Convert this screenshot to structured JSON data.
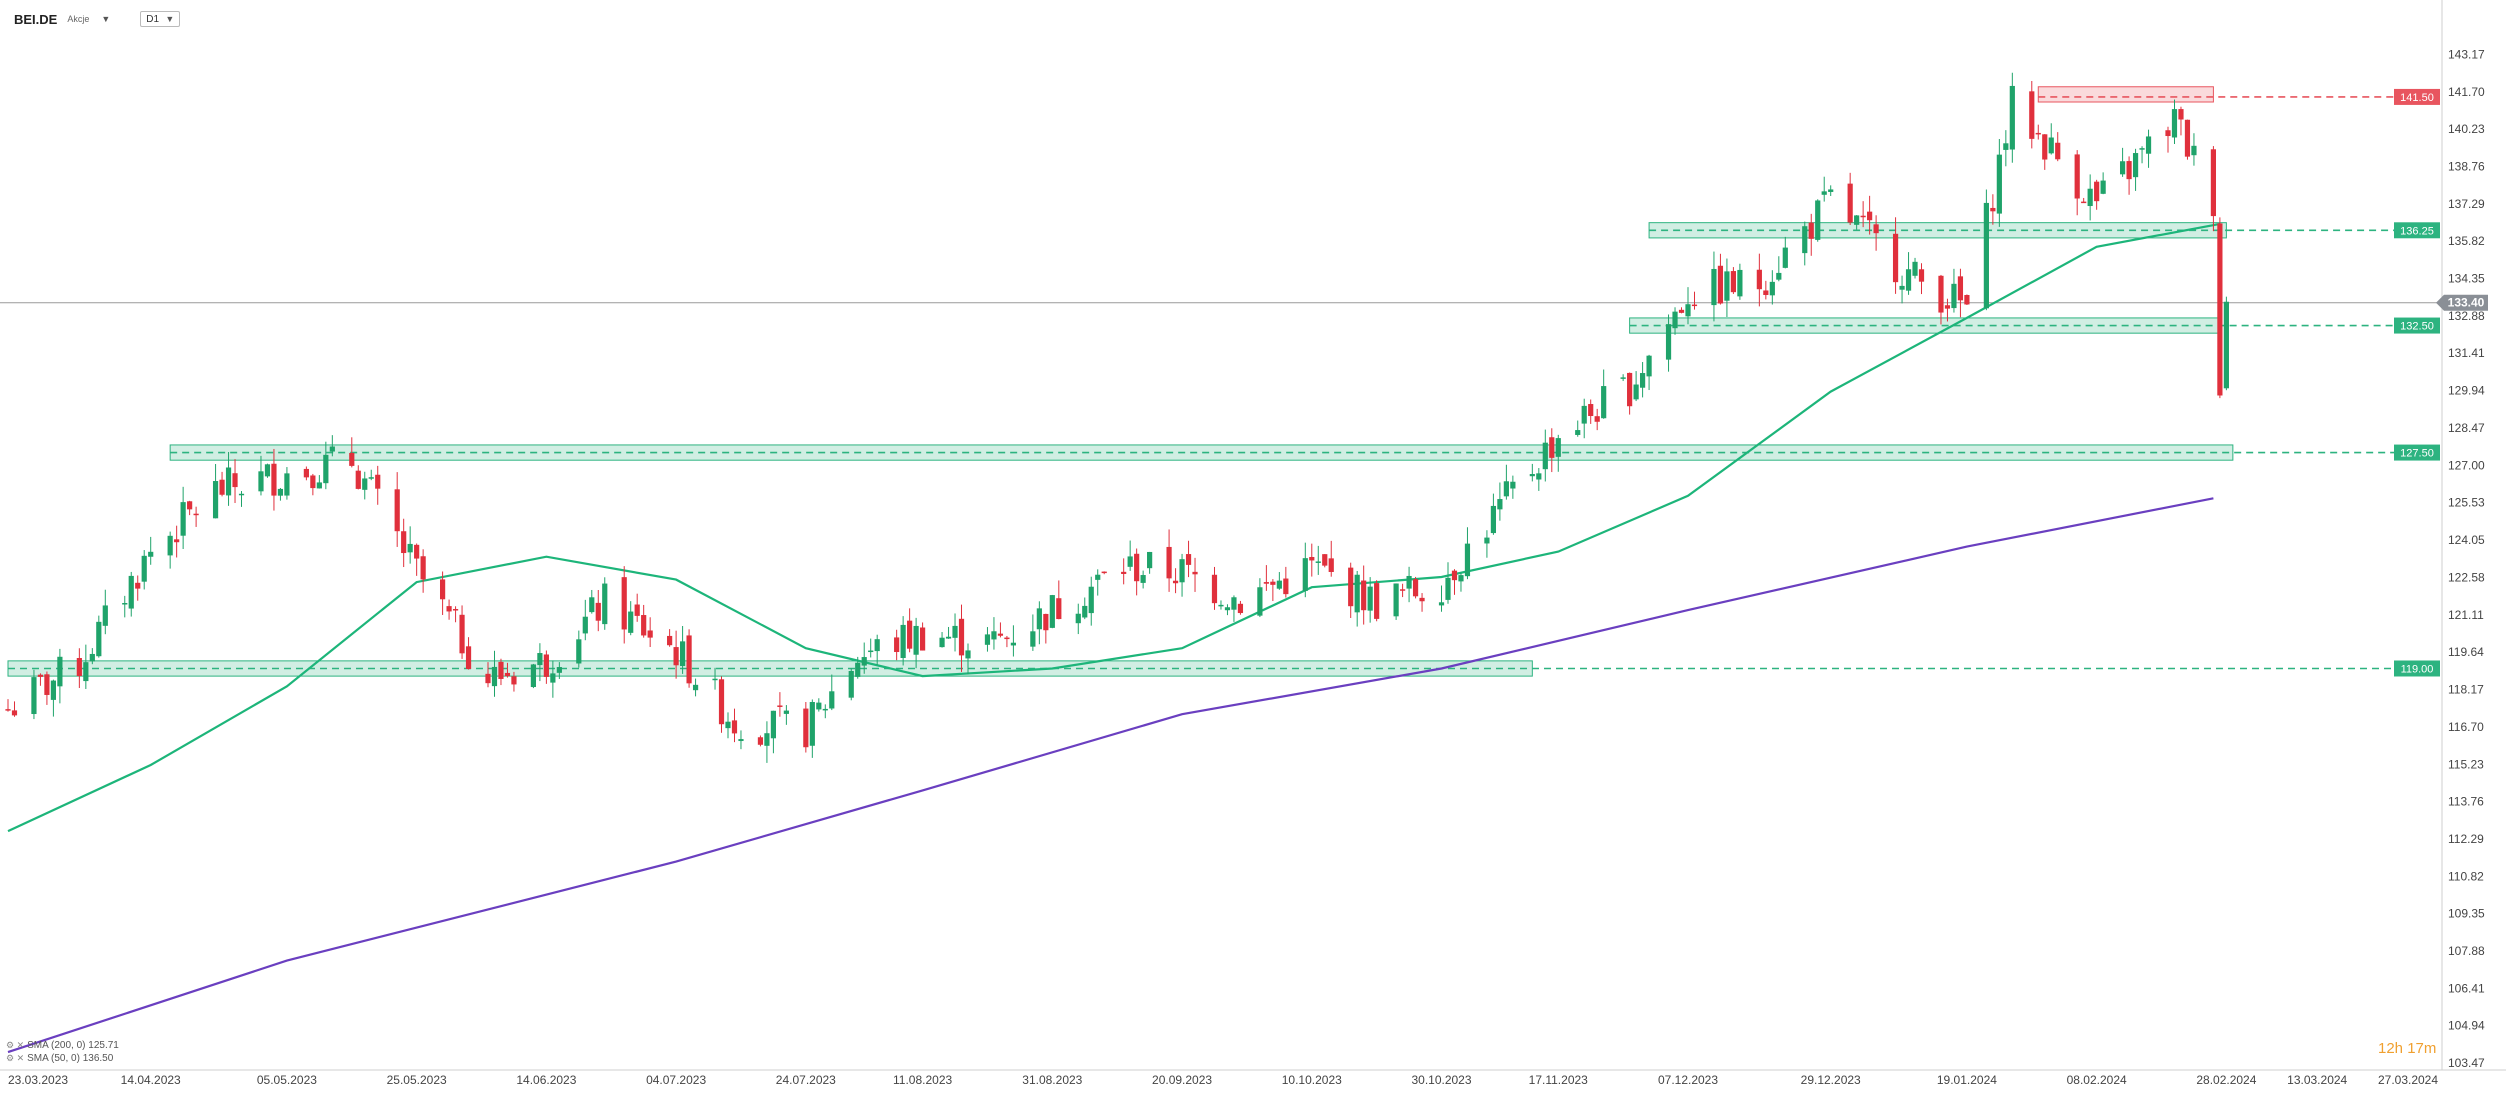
{
  "header": {
    "symbol": "BEI.DE",
    "instrument_type": "Akcje",
    "timeframe": "D1"
  },
  "legend": [
    {
      "label": "SMA (200, 0) 125.71",
      "color": "#6a3fc0"
    },
    {
      "label": "SMA (50, 0) 136.50",
      "color": "#1db57a"
    }
  ],
  "countdown": "12h 17m",
  "colors": {
    "up": "#1fa36a",
    "down": "#e0303c",
    "zone_green": "#2db380",
    "zone_red": "#e8555f",
    "sma200": "#6a3fc0",
    "sma50": "#1db57a"
  },
  "chart_data": {
    "type": "candlestick",
    "symbol": "BEI.DE",
    "y_axis": {
      "range": [
        103.47,
        144.2
      ],
      "ticks": [
        143.17,
        141.7,
        140.23,
        138.76,
        137.29,
        135.82,
        134.35,
        132.88,
        131.41,
        129.94,
        128.47,
        127.0,
        125.53,
        124.05,
        122.58,
        121.11,
        119.64,
        118.17,
        116.7,
        115.23,
        113.76,
        112.29,
        110.82,
        109.35,
        107.88,
        106.41,
        104.94,
        103.47
      ]
    },
    "x_axis": {
      "start": "2023-03-23",
      "end": "2024-03-27",
      "labels": [
        "23.03.2023",
        "14.04.2023",
        "05.05.2023",
        "25.05.2023",
        "14.06.2023",
        "04.07.2023",
        "24.07.2023",
        "11.08.2023",
        "31.08.2023",
        "20.09.2023",
        "10.10.2023",
        "30.10.2023",
        "17.11.2023",
        "07.12.2023",
        "29.12.2023",
        "19.01.2024",
        "08.02.2024",
        "28.02.2024",
        "13.03.2024",
        "27.03.2024"
      ]
    },
    "current_price": 133.4,
    "price_levels": [
      {
        "value": 141.5,
        "type": "resistance",
        "zone": [
          141.3,
          141.9
        ],
        "from": "2024-01-30",
        "to": "2024-02-26"
      },
      {
        "value": 136.25,
        "type": "support",
        "zone": [
          135.95,
          136.55
        ],
        "from": "2023-12-01",
        "to": "2024-02-28"
      },
      {
        "value": 132.5,
        "type": "support",
        "zone": [
          132.2,
          132.8
        ],
        "from": "2023-11-28",
        "to": "2024-02-27"
      },
      {
        "value": 127.5,
        "type": "support",
        "zone": [
          127.2,
          127.8
        ],
        "from": "2023-04-17",
        "to": "2024-02-29"
      },
      {
        "value": 119.0,
        "type": "support",
        "zone": [
          118.7,
          119.3
        ],
        "from": "2023-03-23",
        "to": "2023-11-13"
      }
    ],
    "series": [
      {
        "name": "SMA (200, 0)",
        "current": 125.71,
        "points": [
          [
            "2023-03-23",
            103.9
          ],
          [
            "2023-05-05",
            107.5
          ],
          [
            "2023-07-04",
            111.4
          ],
          [
            "2023-08-11",
            114.2
          ],
          [
            "2023-09-20",
            117.2
          ],
          [
            "2023-10-30",
            119.0
          ],
          [
            "2023-12-07",
            121.3
          ],
          [
            "2024-01-19",
            123.8
          ],
          [
            "2024-02-26",
            125.7
          ]
        ]
      },
      {
        "name": "SMA (50, 0)",
        "current": 136.5,
        "points": [
          [
            "2023-03-23",
            112.6
          ],
          [
            "2023-04-14",
            115.2
          ],
          [
            "2023-05-05",
            118.3
          ],
          [
            "2023-05-25",
            122.4
          ],
          [
            "2023-06-14",
            123.4
          ],
          [
            "2023-07-04",
            122.5
          ],
          [
            "2023-07-24",
            119.8
          ],
          [
            "2023-08-11",
            118.7
          ],
          [
            "2023-08-31",
            119.0
          ],
          [
            "2023-09-20",
            119.8
          ],
          [
            "2023-10-10",
            122.2
          ],
          [
            "2023-10-30",
            122.6
          ],
          [
            "2023-11-17",
            123.6
          ],
          [
            "2023-12-07",
            125.8
          ],
          [
            "2023-12-29",
            129.9
          ],
          [
            "2024-01-19",
            132.8
          ],
          [
            "2024-02-08",
            135.6
          ],
          [
            "2024-02-27",
            136.5
          ]
        ]
      }
    ],
    "ohlc_note": "Candles approximated from the price path: closes at each date label",
    "closes": [
      [
        "2023-03-23",
        117.4
      ],
      [
        "2023-04-03",
        119.2
      ],
      [
        "2023-04-14",
        123.6
      ],
      [
        "2023-04-24",
        126.0
      ],
      [
        "2023-05-05",
        126.7
      ],
      [
        "2023-05-15",
        127.2
      ],
      [
        "2023-05-25",
        122.8
      ],
      [
        "2023-06-05",
        118.6
      ],
      [
        "2023-06-14",
        119.3
      ],
      [
        "2023-06-23",
        121.6
      ],
      [
        "2023-07-04",
        119.7
      ],
      [
        "2023-07-13",
        116.9
      ],
      [
        "2023-07-24",
        116.6
      ],
      [
        "2023-08-01",
        119.5
      ],
      [
        "2023-08-11",
        120.4
      ],
      [
        "2023-08-22",
        120.0
      ],
      [
        "2023-08-31",
        121.3
      ],
      [
        "2023-09-11",
        123.0
      ],
      [
        "2023-09-20",
        122.8
      ],
      [
        "2023-09-29",
        121.7
      ],
      [
        "2023-10-10",
        123.0
      ],
      [
        "2023-10-20",
        121.6
      ],
      [
        "2023-10-30",
        122.4
      ],
      [
        "2023-11-08",
        125.3
      ],
      [
        "2023-11-17",
        128.2
      ],
      [
        "2023-11-28",
        130.1
      ],
      [
        "2023-12-07",
        133.8
      ],
      [
        "2023-12-18",
        134.2
      ],
      [
        "2023-12-29",
        137.4
      ],
      [
        "2024-01-10",
        134.5
      ],
      [
        "2024-01-19",
        133.2
      ],
      [
        "2024-01-26",
        141.2
      ],
      [
        "2024-02-08",
        137.3
      ],
      [
        "2024-02-20",
        140.6
      ],
      [
        "2024-02-26",
        137.5
      ],
      [
        "2024-02-27",
        130.1
      ],
      [
        "2024-02-28",
        133.4
      ]
    ]
  }
}
